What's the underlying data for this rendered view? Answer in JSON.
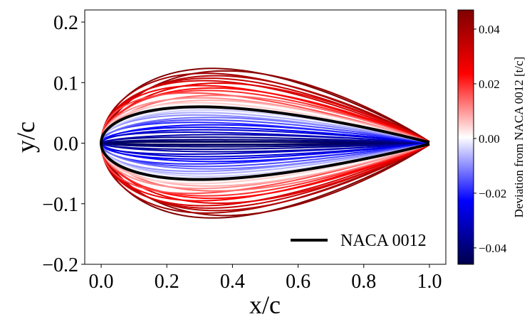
{
  "chart_data": {
    "type": "line",
    "title": "",
    "xlabel": "x/c",
    "ylabel": "y/c",
    "xlim": [
      -0.05,
      1.05
    ],
    "ylim": [
      -0.2,
      0.22
    ],
    "x_ticks": [
      0.0,
      0.2,
      0.4,
      0.6,
      0.8,
      1.0
    ],
    "x_tick_labels": [
      "0.0",
      "0.2",
      "0.4",
      "0.6",
      "0.8",
      "1.0"
    ],
    "y_ticks": [
      -0.2,
      -0.1,
      0.0,
      0.1,
      0.2
    ],
    "y_tick_labels": [
      "−0.2",
      "−0.1",
      "0.0",
      "0.1",
      "0.2"
    ],
    "grid": false,
    "legend": {
      "location": "lower-right",
      "entries": [
        "NACA 0012"
      ]
    },
    "reference_airfoil": {
      "name": "NACA 0012",
      "thickness_ratio": 0.12,
      "color": "#000000"
    },
    "perturbed_airfoils": {
      "description_count": 33,
      "shape_note": "symmetric-thickness family with varying max thickness",
      "deviations": [
        -0.046,
        -0.044,
        -0.042,
        -0.04,
        -0.037,
        -0.034,
        -0.031,
        -0.028,
        -0.025,
        -0.022,
        -0.019,
        -0.016,
        -0.013,
        -0.01,
        -0.007,
        -0.004,
        -0.002,
        0.002,
        0.005,
        0.008,
        0.011,
        0.014,
        0.017,
        0.02,
        0.023,
        0.026,
        0.029,
        0.032,
        0.035,
        0.038,
        0.041,
        0.044,
        0.047
      ],
      "max_thickness_position": [
        0.3,
        0.32,
        0.28,
        0.34,
        0.3,
        0.36,
        0.26,
        0.32,
        0.3,
        0.34,
        0.28,
        0.31,
        0.33,
        0.29,
        0.3,
        0.32,
        0.3,
        0.31,
        0.29,
        0.33,
        0.3,
        0.35,
        0.27,
        0.32,
        0.34,
        0.3,
        0.36,
        0.31,
        0.33,
        0.35,
        0.32,
        0.38,
        0.34
      ]
    },
    "colorbar": {
      "label": "Deviation from NACA 0012 [t/c]",
      "colormap": "seismic",
      "range": [
        -0.046,
        0.047
      ],
      "ticks": [
        -0.04,
        -0.02,
        0.0,
        0.02,
        0.04
      ],
      "tick_labels": [
        "−0.04",
        "−0.02",
        "0.00",
        "0.02",
        "0.04"
      ],
      "colors": [
        "#00004c",
        "#0000ff",
        "#ffffff",
        "#ff0000",
        "#800000"
      ]
    }
  }
}
